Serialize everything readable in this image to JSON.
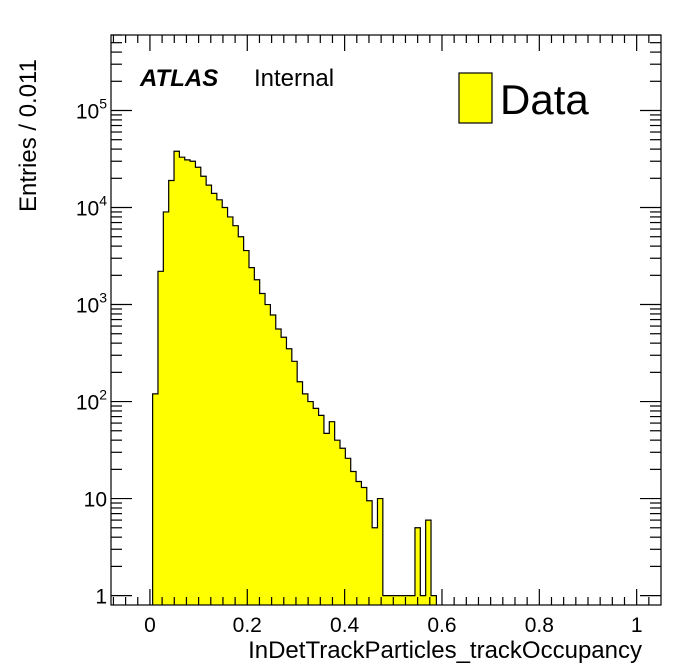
{
  "chart_data": {
    "type": "bar",
    "xlabel": "InDetTrackParticles_trackOccupancy",
    "ylabel": "Entries / 0.011",
    "xlim": [
      -0.08,
      1.05
    ],
    "ylim": [
      0.8,
      600000
    ],
    "yscale": "log",
    "bin_width": 0.011,
    "fill_color": "#ffff00",
    "line_color": "#000000",
    "x_ticks": [
      "0",
      "0.2",
      "0.4",
      "0.6",
      "0.8",
      "1"
    ],
    "x_tick_values": [
      0,
      0.2,
      0.4,
      0.6,
      0.8,
      1.0
    ],
    "y_ticks": [
      {
        "base": "1",
        "exp": "",
        "value": 1
      },
      {
        "base": "10",
        "exp": "",
        "value": 10
      },
      {
        "base": "10",
        "exp": "2",
        "value": 100
      },
      {
        "base": "10",
        "exp": "3",
        "value": 1000
      },
      {
        "base": "10",
        "exp": "4",
        "value": 10000
      },
      {
        "base": "10",
        "exp": "5",
        "value": 100000
      }
    ],
    "series": [
      {
        "name": "Data",
        "bin_low_edges": [
          0.0055,
          0.0165,
          0.0275,
          0.0385,
          0.0495,
          0.0605,
          0.0715,
          0.0825,
          0.0935,
          0.1045,
          0.1155,
          0.1265,
          0.1375,
          0.1485,
          0.1595,
          0.1705,
          0.1815,
          0.1925,
          0.2035,
          0.2145,
          0.2255,
          0.2365,
          0.2475,
          0.2585,
          0.2695,
          0.2805,
          0.2915,
          0.3025,
          0.3135,
          0.3245,
          0.3355,
          0.3465,
          0.3575,
          0.3685,
          0.3795,
          0.3905,
          0.4015,
          0.4125,
          0.4235,
          0.4345,
          0.4455,
          0.4565,
          0.4675,
          0.4785,
          0.4895,
          0.5005,
          0.5115,
          0.5225,
          0.5335,
          0.5445,
          0.5555,
          0.5665,
          0.5775
        ],
        "values": [
          120,
          2200,
          9000,
          19000,
          38000,
          33000,
          31000,
          30000,
          26000,
          21000,
          17000,
          14000,
          12000,
          10000,
          8000,
          6500,
          5000,
          3600,
          2400,
          1800,
          1300,
          1000,
          780,
          560,
          460,
          350,
          260,
          160,
          120,
          100,
          85,
          72,
          47,
          62,
          40,
          33,
          26,
          19,
          15,
          13,
          9.5,
          5,
          10,
          1,
          1,
          1,
          1,
          1,
          1,
          5,
          1,
          6,
          1
        ],
        "gap_bins_from": [
          0.5115,
          0.5665
        ]
      }
    ]
  },
  "labels": {
    "atlas": "ATLAS",
    "internal": "Internal",
    "legend_entry": "Data"
  }
}
